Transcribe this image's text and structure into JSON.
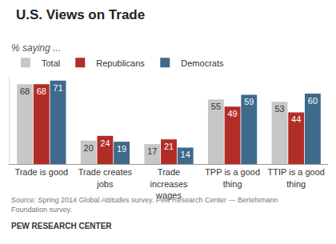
{
  "chart_data": {
    "type": "bar",
    "title": "U.S. Views on Trade",
    "subtitle": "% saying ...",
    "categories": [
      "Trade is good",
      "Trade creates jobs",
      "Trade increases wages",
      "TPP is a good thing",
      "TTIP is a good thing"
    ],
    "series": [
      {
        "name": "Total",
        "color": "#c7c7c7",
        "values": [
          68,
          20,
          17,
          55,
          53
        ]
      },
      {
        "name": "Republicans",
        "color": "#b22d26",
        "values": [
          68,
          24,
          21,
          49,
          44
        ]
      },
      {
        "name": "Democrats",
        "color": "#3e6a8c",
        "values": [
          71,
          19,
          14,
          59,
          60
        ]
      }
    ],
    "ylim": [
      0,
      75
    ],
    "yticks": [],
    "tick_labels": "x",
    "grid": false,
    "data_labels": true,
    "legend": "top-left",
    "source": [
      "Source: Spring 2014 Global Attitudes survey. Pew Research Center — Bertelsmann",
      "Foundation survey."
    ],
    "footer": "PEW RESEARCH CENTER"
  }
}
